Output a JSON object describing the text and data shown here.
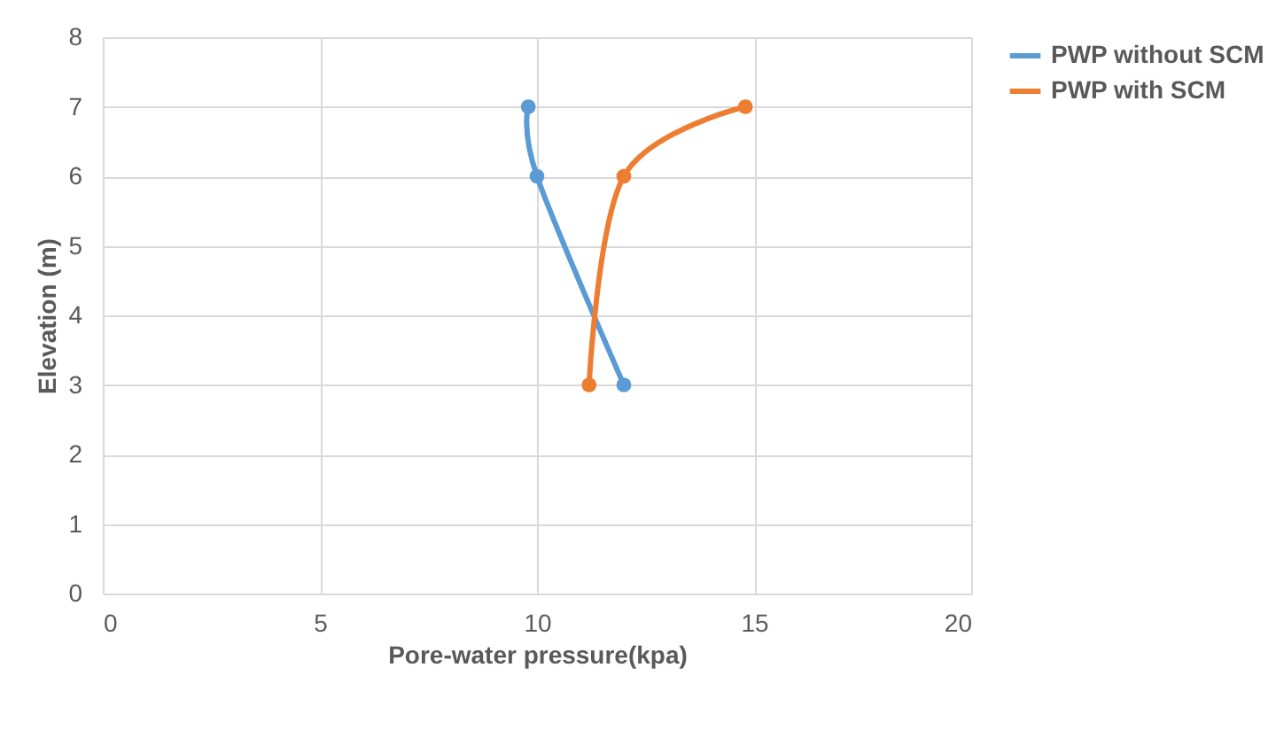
{
  "chart_data": {
    "type": "line",
    "xlabel": "Pore-water pressure(kpa)",
    "ylabel": "Elevation (m)",
    "xlim": [
      0,
      20
    ],
    "xticks": [
      0,
      5,
      10,
      15,
      20
    ],
    "ylim": [
      0,
      8
    ],
    "yticks": [
      0,
      1,
      2,
      3,
      4,
      5,
      6,
      7,
      8
    ],
    "grid": true,
    "legend": "right",
    "marker": "circle",
    "line_style": "solid",
    "series": [
      {
        "name": "PWP without SCM",
        "color": "#5b9bd5",
        "x": [
          9.8,
          10,
          12
        ],
        "values": [
          7,
          6,
          3
        ]
      },
      {
        "name": "PWP with SCM",
        "color": "#ed7d31",
        "x": [
          14.8,
          12,
          11.2
        ],
        "values": [
          7,
          6,
          3
        ]
      }
    ]
  }
}
